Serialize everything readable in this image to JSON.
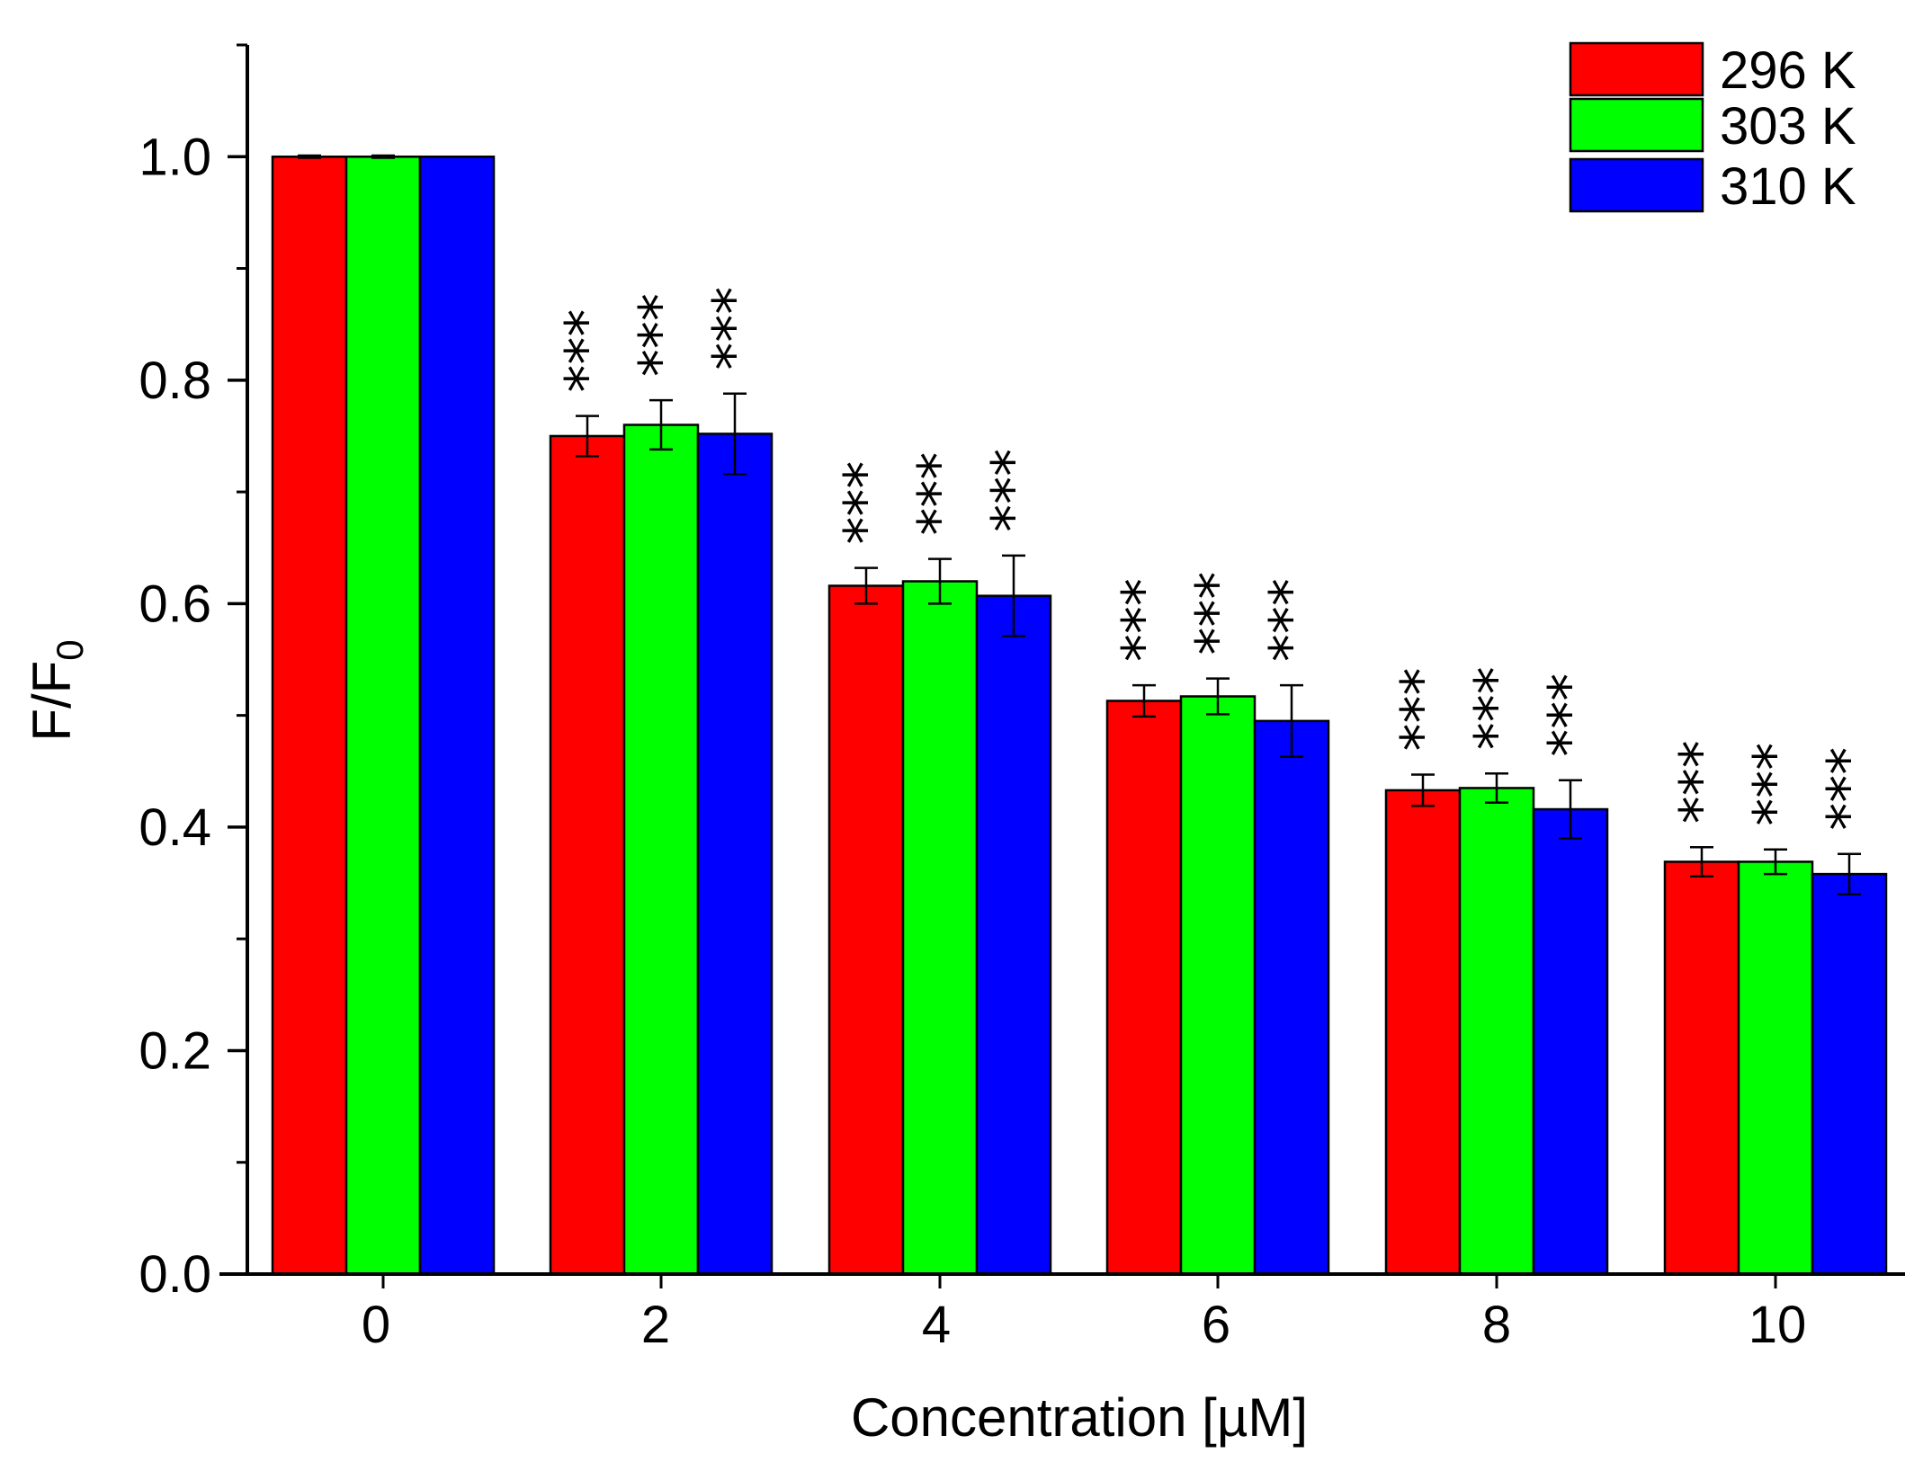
{
  "chart_data": {
    "type": "bar",
    "title": "",
    "xlabel": "Concentration [µM]",
    "ylabel": "F/F",
    "ylabel_subscript": "0",
    "ylim": [
      0,
      1.1
    ],
    "yticks": [
      "0.0",
      "0.2",
      "0.4",
      "0.6",
      "0.8",
      "1.0"
    ],
    "categories": [
      "0",
      "2",
      "4",
      "6",
      "8",
      "10"
    ],
    "series": [
      {
        "name": "296 K",
        "color": "#ff0000",
        "values": [
          1.0,
          0.75,
          0.616,
          0.513,
          0.433,
          0.369
        ],
        "errors": [
          0.001,
          0.018,
          0.016,
          0.014,
          0.014,
          0.013
        ],
        "significance": [
          "",
          "***",
          "***",
          "***",
          "***",
          "***"
        ]
      },
      {
        "name": "303 K",
        "color": "#00ff00",
        "values": [
          1.0,
          0.76,
          0.62,
          0.517,
          0.435,
          0.369
        ],
        "errors": [
          0.001,
          0.022,
          0.02,
          0.016,
          0.013,
          0.011
        ],
        "significance": [
          "",
          "***",
          "***",
          "***",
          "***",
          "***"
        ]
      },
      {
        "name": "310 K",
        "color": "#0000ff",
        "values": [
          1.0,
          0.752,
          0.607,
          0.495,
          0.416,
          0.358
        ],
        "errors": [
          0.0,
          0.036,
          0.036,
          0.032,
          0.026,
          0.018
        ],
        "significance": [
          "",
          "***",
          "***",
          "***",
          "***",
          "***"
        ]
      }
    ],
    "legend_position": "top-right",
    "grid": false
  }
}
